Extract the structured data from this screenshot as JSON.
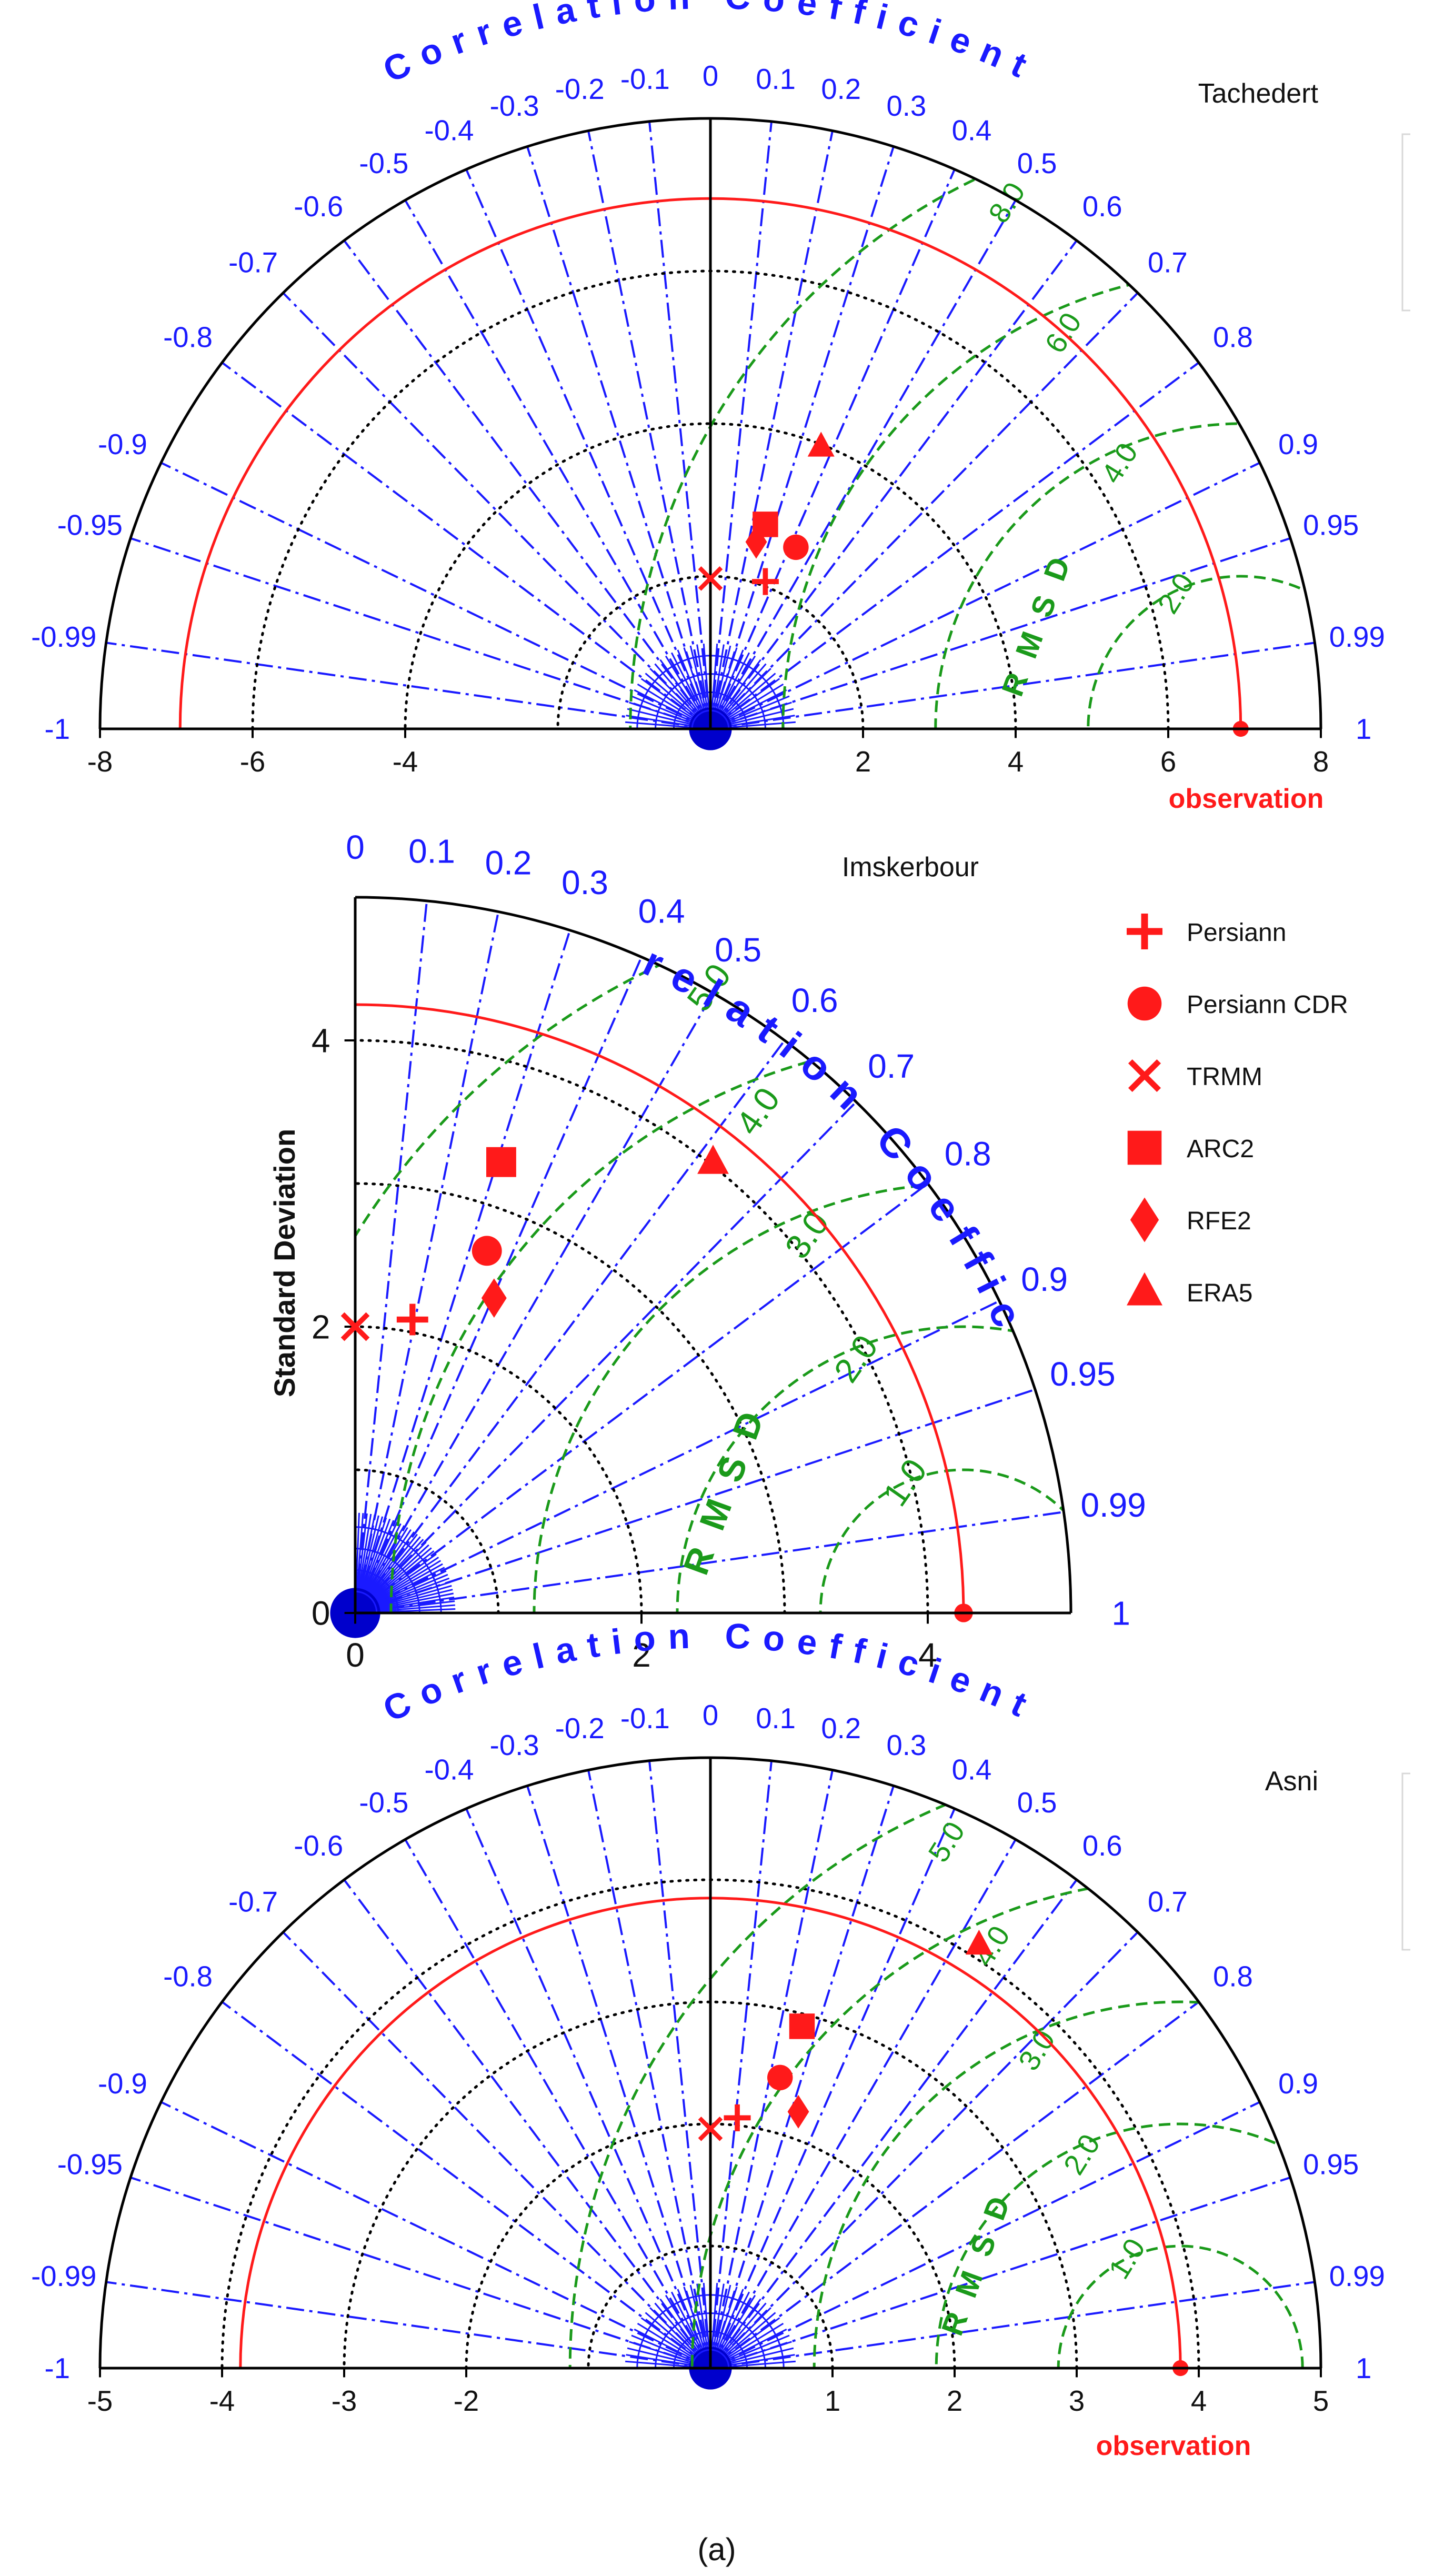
{
  "caption": "(a)",
  "colors": {
    "corr": "#1a1aff",
    "rms": "#1a9a1a",
    "ref": "#ff1a1a",
    "marker": "#ff1a1a",
    "frame": "#000000",
    "grid": "#000000"
  },
  "legend": {
    "items": [
      {
        "label": "Persiann",
        "marker": "plus"
      },
      {
        "label": "Persiann CDR",
        "marker": "circle"
      },
      {
        "label": "TRMM",
        "marker": "x"
      },
      {
        "label": "ARC2",
        "marker": "square"
      },
      {
        "label": "RFE2",
        "marker": "diamond"
      },
      {
        "label": "ERA5",
        "marker": "triangle"
      }
    ]
  },
  "chart_data": [
    {
      "type": "taylor",
      "layout": "full",
      "station": "Tachedert",
      "title": "Correlation Coefficient",
      "rms_label": "RMSD",
      "observation_label": "observation",
      "ref_std": 6.95,
      "max_std": 8,
      "x_ticks": [
        -8,
        -6,
        -4,
        "",
        2,
        4,
        6,
        8
      ],
      "std_rings": [
        2,
        4,
        6
      ],
      "corr_labels": [
        "-1",
        "-0.99",
        "-0.95",
        "-0.9",
        "-0.8",
        "-0.7",
        "-0.6",
        "-0.5",
        "-0.4",
        "-0.3",
        "-0.2",
        "-0.1",
        "0",
        "0.1",
        "0.2",
        "0.3",
        "0.4",
        "0.5",
        "0.6",
        "0.7",
        "0.8",
        "0.9",
        "0.95",
        "0.99",
        "1"
      ],
      "rms_levels": [
        {
          "value": 2,
          "label": "2.0"
        },
        {
          "value": 4,
          "label": "4.0"
        },
        {
          "value": 6,
          "label": "6.0"
        },
        {
          "value": 8,
          "label": "8.0"
        }
      ],
      "points": [
        {
          "model": "Persiann",
          "marker": "plus",
          "x": 0.72,
          "y": 1.93
        },
        {
          "model": "Persiann CDR",
          "marker": "circle",
          "x": 1.12,
          "y": 2.38
        },
        {
          "model": "TRMM",
          "marker": "x",
          "x": 0.0,
          "y": 1.97
        },
        {
          "model": "ARC2",
          "marker": "square",
          "x": 0.72,
          "y": 2.68
        },
        {
          "model": "RFE2",
          "marker": "diamond",
          "x": 0.6,
          "y": 2.45
        },
        {
          "model": "ERA5",
          "marker": "triangle",
          "x": 1.45,
          "y": 3.7
        }
      ]
    },
    {
      "type": "taylor",
      "layout": "quarter",
      "station": "Imskerbour",
      "title": "Correlation Coefficient",
      "rms_label": "RMSD",
      "ylabel": "Standard Deviation",
      "ref_std": 4.25,
      "max_std": 5,
      "x_ticks": [
        0,
        2,
        4
      ],
      "y_ticks": [
        0,
        2,
        4
      ],
      "std_rings": [
        1,
        2,
        3,
        4
      ],
      "corr_labels": [
        "0",
        "0.1",
        "0.2",
        "0.3",
        "0.4",
        "0.5",
        "0.6",
        "0.7",
        "0.8",
        "0.9",
        "0.95",
        "0.99",
        "1"
      ],
      "rms_levels": [
        {
          "value": 1,
          "label": "1.0"
        },
        {
          "value": 2,
          "label": "2.0"
        },
        {
          "value": 3,
          "label": "3.0"
        },
        {
          "value": 4,
          "label": "4.0"
        },
        {
          "value": 5,
          "label": "5.0"
        }
      ],
      "points": [
        {
          "model": "Persiann",
          "marker": "plus",
          "x": 0.4,
          "y": 2.05
        },
        {
          "model": "Persiann CDR",
          "marker": "circle",
          "x": 0.92,
          "y": 2.53
        },
        {
          "model": "TRMM",
          "marker": "x",
          "x": 0.0,
          "y": 2.0
        },
        {
          "model": "ARC2",
          "marker": "square",
          "x": 1.02,
          "y": 3.15
        },
        {
          "model": "RFE2",
          "marker": "diamond",
          "x": 0.97,
          "y": 2.2
        },
        {
          "model": "ERA5",
          "marker": "triangle",
          "x": 2.5,
          "y": 3.15
        }
      ]
    },
    {
      "type": "taylor",
      "layout": "full",
      "station": "Asni",
      "title": "Correlation Coefficient",
      "rms_label": "RMSD",
      "observation_label": "observation",
      "ref_std": 3.85,
      "max_std": 5,
      "x_ticks": [
        -5,
        -4,
        -3,
        -2,
        "",
        1,
        2,
        3,
        4,
        5
      ],
      "std_rings": [
        1,
        2,
        3,
        4
      ],
      "corr_labels": [
        "-1",
        "-0.99",
        "-0.95",
        "-0.9",
        "-0.8",
        "-0.7",
        "-0.6",
        "-0.5",
        "-0.4",
        "-0.3",
        "-0.2",
        "-0.1",
        "0",
        "0.1",
        "0.2",
        "0.3",
        "0.4",
        "0.5",
        "0.6",
        "0.7",
        "0.8",
        "0.9",
        "0.95",
        "0.99",
        "1"
      ],
      "rms_levels": [
        {
          "value": 1,
          "label": "1.0"
        },
        {
          "value": 2,
          "label": "2.0"
        },
        {
          "value": 3,
          "label": "3.0"
        },
        {
          "value": 4,
          "label": "4.0"
        },
        {
          "value": 5,
          "label": "5.0"
        }
      ],
      "points": [
        {
          "model": "Persiann",
          "marker": "plus",
          "x": 0.22,
          "y": 2.05
        },
        {
          "model": "Persiann CDR",
          "marker": "circle",
          "x": 0.57,
          "y": 2.38
        },
        {
          "model": "TRMM",
          "marker": "x",
          "x": 0.0,
          "y": 1.96
        },
        {
          "model": "ARC2",
          "marker": "square",
          "x": 0.75,
          "y": 2.8
        },
        {
          "model": "RFE2",
          "marker": "diamond",
          "x": 0.72,
          "y": 2.1
        },
        {
          "model": "ERA5",
          "marker": "triangle",
          "x": 2.2,
          "y": 3.47
        }
      ]
    }
  ]
}
